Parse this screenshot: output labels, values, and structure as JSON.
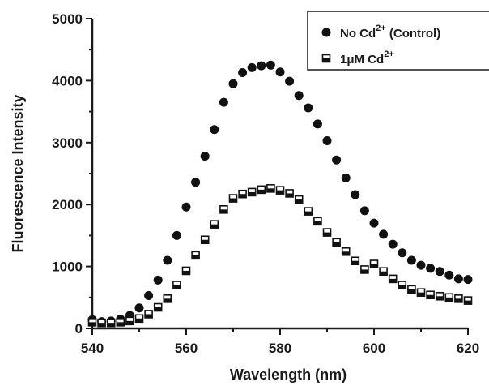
{
  "chart_data": {
    "type": "scatter",
    "xlabel": "Wavelength (nm)",
    "ylabel": "Fluorescence Intensity",
    "xlim": [
      540,
      620
    ],
    "ylim": [
      0,
      5000
    ],
    "x_ticks": [
      "540",
      "560",
      "580",
      "600",
      "620"
    ],
    "y_ticks": [
      "0",
      "1000",
      "2000",
      "3000",
      "4000",
      "5000"
    ],
    "grid": false,
    "legend_position": "top-right",
    "series": [
      {
        "marker": "filled-circle",
        "color": "#111111",
        "legend": {
          "main": "No Cd",
          "sup": "2+",
          "suffix": " (Control)"
        },
        "x": [
          540,
          542,
          544,
          546,
          548,
          550,
          552,
          554,
          556,
          558,
          560,
          562,
          564,
          566,
          568,
          570,
          572,
          574,
          576,
          578,
          580,
          582,
          584,
          586,
          588,
          590,
          592,
          594,
          596,
          598,
          600,
          602,
          604,
          606,
          608,
          610,
          612,
          614,
          616,
          618,
          620
        ],
        "y": [
          140,
          110,
          120,
          150,
          210,
          330,
          530,
          780,
          1100,
          1500,
          1960,
          2360,
          2780,
          3210,
          3650,
          3950,
          4130,
          4210,
          4240,
          4250,
          4140,
          3990,
          3760,
          3560,
          3300,
          3030,
          2720,
          2430,
          2160,
          1900,
          1700,
          1520,
          1360,
          1220,
          1100,
          1020,
          970,
          920,
          860,
          800,
          790
        ]
      },
      {
        "marker": "half-filled-square",
        "color": "#111111",
        "legend": {
          "main": "1μM Cd",
          "sup": "2+",
          "suffix": ""
        },
        "x": [
          540,
          542,
          544,
          546,
          548,
          550,
          552,
          554,
          556,
          558,
          560,
          562,
          564,
          566,
          568,
          570,
          572,
          574,
          576,
          578,
          580,
          582,
          584,
          586,
          588,
          590,
          592,
          594,
          596,
          598,
          600,
          602,
          604,
          606,
          608,
          610,
          612,
          614,
          616,
          618,
          620
        ],
        "y": [
          100,
          90,
          90,
          100,
          120,
          160,
          230,
          340,
          480,
          700,
          930,
          1180,
          1430,
          1680,
          1920,
          2100,
          2170,
          2200,
          2240,
          2260,
          2230,
          2180,
          2080,
          1890,
          1730,
          1550,
          1390,
          1240,
          1090,
          950,
          1040,
          920,
          800,
          700,
          630,
          580,
          540,
          520,
          500,
          480,
          450
        ]
      }
    ]
  }
}
